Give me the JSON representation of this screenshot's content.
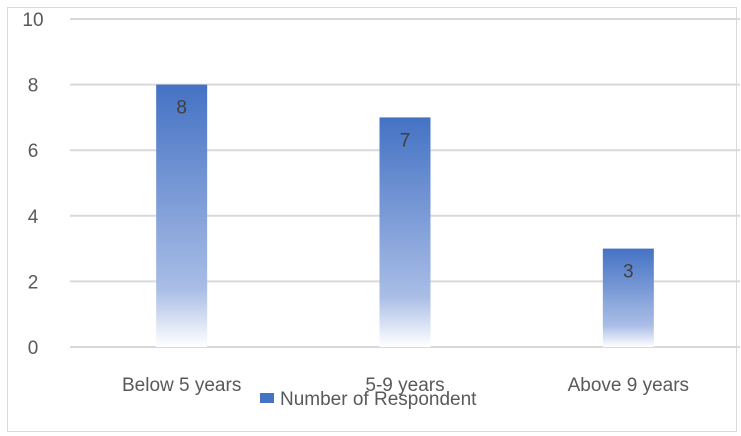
{
  "chart_data": {
    "type": "bar",
    "categories": [
      "Below 5 years",
      "5-9 years",
      "Above 9 years"
    ],
    "series": [
      {
        "name": "Number of Respondent",
        "values": [
          8,
          7,
          3
        ]
      }
    ],
    "ylim": [
      0,
      10
    ],
    "yticks": [
      0,
      2,
      4,
      6,
      8,
      10
    ],
    "grid": true,
    "legend": "bottom",
    "data_labels": true,
    "colors": {
      "bar_top": "#4472c4",
      "bar_bottom": "#ffffff",
      "grid": "#d9d9d9",
      "text": "#595959"
    }
  }
}
